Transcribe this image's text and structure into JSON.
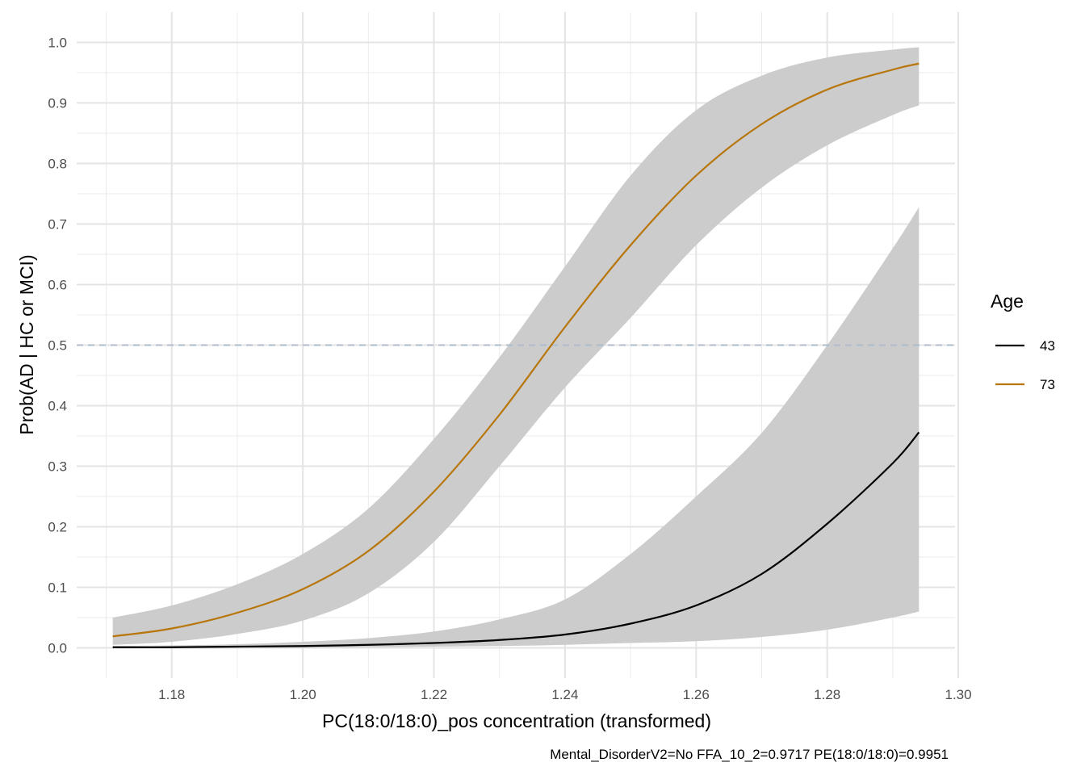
{
  "chart_data": {
    "type": "line",
    "xlabel": "PC(18:0/18:0)_pos concentration (transformed)",
    "ylabel": "Prob(AD | HC or MCI)",
    "caption": "Mental_DisorderV2=No  FFA_10_2=0.9717  PE(18:0/18:0)=0.9951",
    "xlim": [
      1.1655,
      1.2995
    ],
    "ylim": [
      -0.05,
      1.05
    ],
    "x_ticks": [
      1.18,
      1.2,
      1.22,
      1.24,
      1.26,
      1.28,
      1.3
    ],
    "x_tick_labels": [
      "1.18",
      "1.20",
      "1.22",
      "1.24",
      "1.26",
      "1.28",
      "1.30"
    ],
    "y_ticks": [
      0.0,
      0.1,
      0.2,
      0.3,
      0.4,
      0.5,
      0.6,
      0.7,
      0.8,
      0.9,
      1.0
    ],
    "y_tick_labels": [
      "0.0",
      "0.1",
      "0.2",
      "0.3",
      "0.4",
      "0.5",
      "0.6",
      "0.7",
      "0.8",
      "0.9",
      "1.0"
    ],
    "grid": true,
    "reference_line": {
      "y": 0.5,
      "style": "dashed",
      "color": "#b0bccd"
    },
    "legend": {
      "title": "Age",
      "position": "right"
    },
    "ribbon_color": "#cccccc",
    "series": [
      {
        "name": "43",
        "color": "#000000",
        "x": [
          1.171,
          1.18,
          1.19,
          1.2,
          1.21,
          1.22,
          1.23,
          1.24,
          1.25,
          1.26,
          1.27,
          1.28,
          1.29,
          1.294
        ],
        "values": [
          0.001,
          0.001,
          0.002,
          0.003,
          0.005,
          0.008,
          0.013,
          0.022,
          0.04,
          0.07,
          0.122,
          0.205,
          0.305,
          0.356
        ],
        "lower": [
          0.0,
          0.0,
          0.0,
          0.0,
          0.001,
          0.002,
          0.003,
          0.005,
          0.008,
          0.011,
          0.018,
          0.03,
          0.05,
          0.06
        ],
        "upper": [
          0.003,
          0.004,
          0.006,
          0.01,
          0.016,
          0.027,
          0.047,
          0.08,
          0.155,
          0.25,
          0.355,
          0.5,
          0.66,
          0.728
        ]
      },
      {
        "name": "73",
        "color": "#b8760a",
        "x": [
          1.171,
          1.18,
          1.19,
          1.2,
          1.21,
          1.22,
          1.23,
          1.24,
          1.25,
          1.26,
          1.27,
          1.28,
          1.29,
          1.294
        ],
        "values": [
          0.019,
          0.032,
          0.058,
          0.097,
          0.16,
          0.258,
          0.385,
          0.53,
          0.665,
          0.78,
          0.865,
          0.922,
          0.955,
          0.965
        ],
        "lower": [
          0.005,
          0.01,
          0.023,
          0.045,
          0.09,
          0.175,
          0.3,
          0.43,
          0.545,
          0.665,
          0.76,
          0.83,
          0.88,
          0.896
        ],
        "upper": [
          0.05,
          0.07,
          0.105,
          0.155,
          0.23,
          0.345,
          0.48,
          0.63,
          0.78,
          0.888,
          0.945,
          0.975,
          0.988,
          0.992
        ]
      }
    ]
  }
}
